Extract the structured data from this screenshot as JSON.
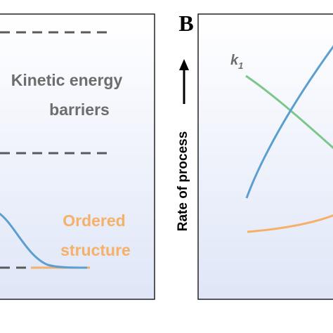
{
  "panel_a": {
    "label_kinetic_line1": "Kinetic energy",
    "label_kinetic_line2": "barriers",
    "label_ordered_line1": "Ordered",
    "label_ordered_line2": "structure",
    "colors": {
      "kinetic_text": "#6d6d6d",
      "ordered_text": "#f5b06a",
      "dashed_line": "#5a5a5a",
      "curve": "#5b9ed0",
      "ordered_line": "#f5b06a",
      "background_top": "#ffffff",
      "background_bottom": "#dfe6f7"
    }
  },
  "panel_b": {
    "letter": "B",
    "y_axis_label": "Rate of process",
    "k1_main": "k",
    "k1_sub": "1",
    "colors": {
      "green_curve": "#7cc68c",
      "blue_curve": "#5b9ed0",
      "orange_curve": "#f5b06a",
      "k1_text": "#6d6d6d",
      "arrow": "#000000"
    }
  }
}
